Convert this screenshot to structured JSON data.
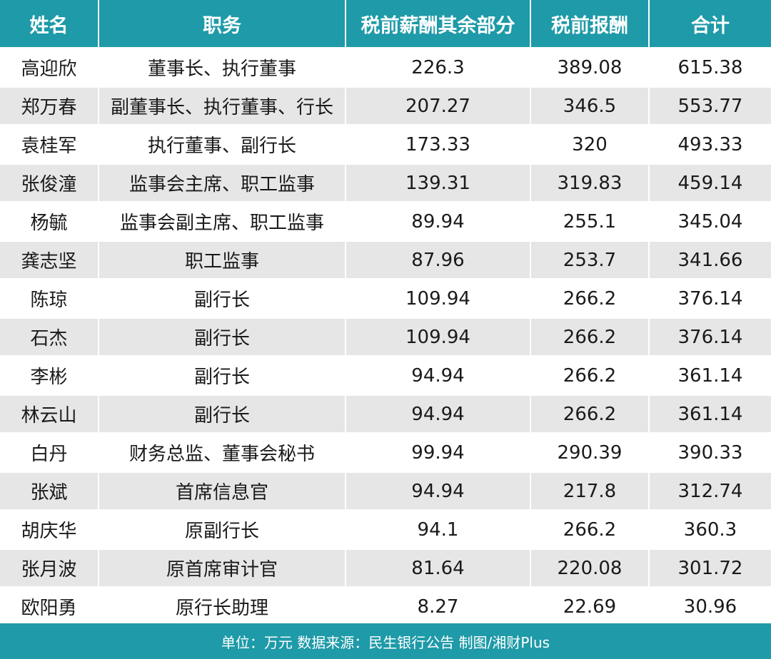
{
  "table": {
    "headers": [
      "姓名",
      "职务",
      "税前薪酬其余部分",
      "税前报酬",
      "合计"
    ],
    "rows": [
      [
        "高迎欣",
        "董事长、执行董事",
        "226.3",
        "389.08",
        "615.38"
      ],
      [
        "郑万春",
        "副董事长、执行董事、行长",
        "207.27",
        "346.5",
        "553.77"
      ],
      [
        "袁桂军",
        "执行董事、副行长",
        "173.33",
        "320",
        "493.33"
      ],
      [
        "张俊潼",
        "监事会主席、职工监事",
        "139.31",
        "319.83",
        "459.14"
      ],
      [
        "杨毓",
        "监事会副主席、职工监事",
        "89.94",
        "255.1",
        "345.04"
      ],
      [
        "龚志坚",
        "职工监事",
        "87.96",
        "253.7",
        "341.66"
      ],
      [
        "陈琼",
        "副行长",
        "109.94",
        "266.2",
        "376.14"
      ],
      [
        "石杰",
        "副行长",
        "109.94",
        "266.2",
        "376.14"
      ],
      [
        "李彬",
        "副行长",
        "94.94",
        "266.2",
        "361.14"
      ],
      [
        "林云山",
        "副行长",
        "94.94",
        "266.2",
        "361.14"
      ],
      [
        "白丹",
        "财务总监、董事会秘书",
        "99.94",
        "290.39",
        "390.33"
      ],
      [
        "张斌",
        "首席信息官",
        "94.94",
        "217.8",
        "312.74"
      ],
      [
        "胡庆华",
        "原副行长",
        "94.1",
        "266.2",
        "360.3"
      ],
      [
        "张月波",
        "原首席审计官",
        "81.64",
        "220.08",
        "301.72"
      ],
      [
        "欧阳勇",
        "原行长助理",
        "8.27",
        "22.69",
        "30.96"
      ]
    ]
  },
  "footer": {
    "text": "单位：万元 数据来源：民生银行公告 制图/湘财Plus"
  },
  "colors": {
    "header_bg": "#1e9aa8",
    "stripe_bg": "#e6e6e6",
    "text": "#1a1a1a"
  }
}
